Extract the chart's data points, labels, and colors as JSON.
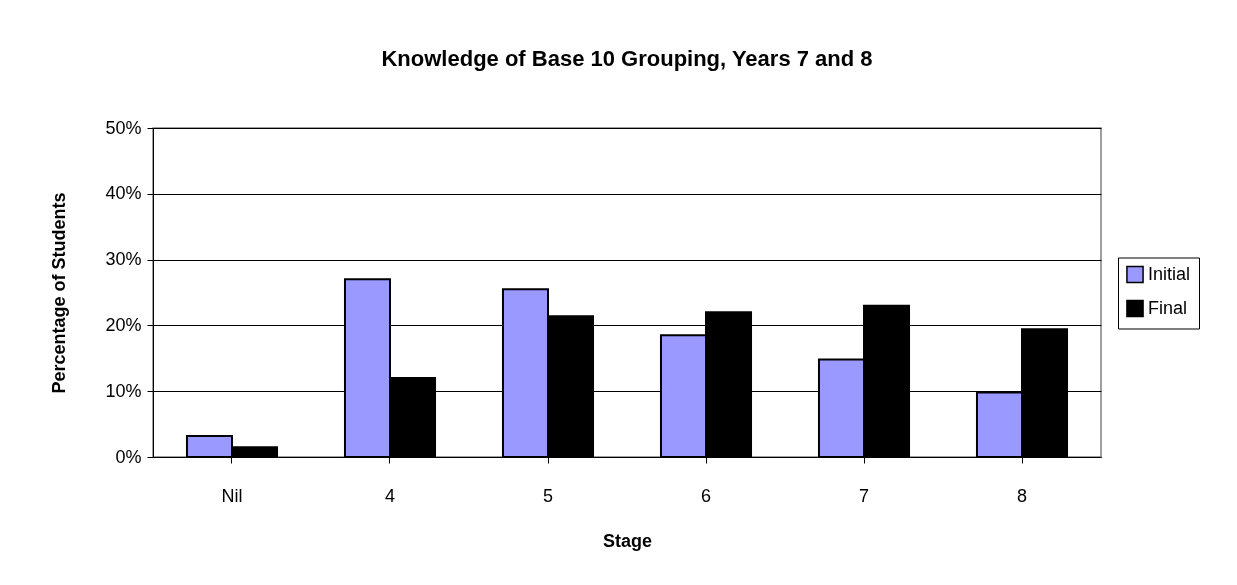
{
  "chart_data": {
    "type": "bar",
    "title": "Knowledge of Base 10 Grouping, Years 7 and 8",
    "xlabel": "Stage",
    "ylabel": "Percentage of Students",
    "categories": [
      "Nil",
      "4",
      "5",
      "6",
      "7",
      "8"
    ],
    "series": [
      {
        "name": "Initial",
        "color": "#9999ff",
        "values": [
          3.2,
          27,
          25.5,
          18.5,
          14.8,
          9.8
        ]
      },
      {
        "name": "Final",
        "color": "#000000",
        "values": [
          1.5,
          12,
          21.4,
          22,
          23,
          19.4
        ]
      }
    ],
    "ylim": [
      0,
      50
    ],
    "yticks": [
      {
        "value": 0,
        "label": "0%"
      },
      {
        "value": 10,
        "label": "10%"
      },
      {
        "value": 20,
        "label": "20%"
      },
      {
        "value": 30,
        "label": "30%"
      },
      {
        "value": 40,
        "label": "40%"
      },
      {
        "value": 50,
        "label": "50%"
      }
    ],
    "grid": "y",
    "legend": "right"
  }
}
